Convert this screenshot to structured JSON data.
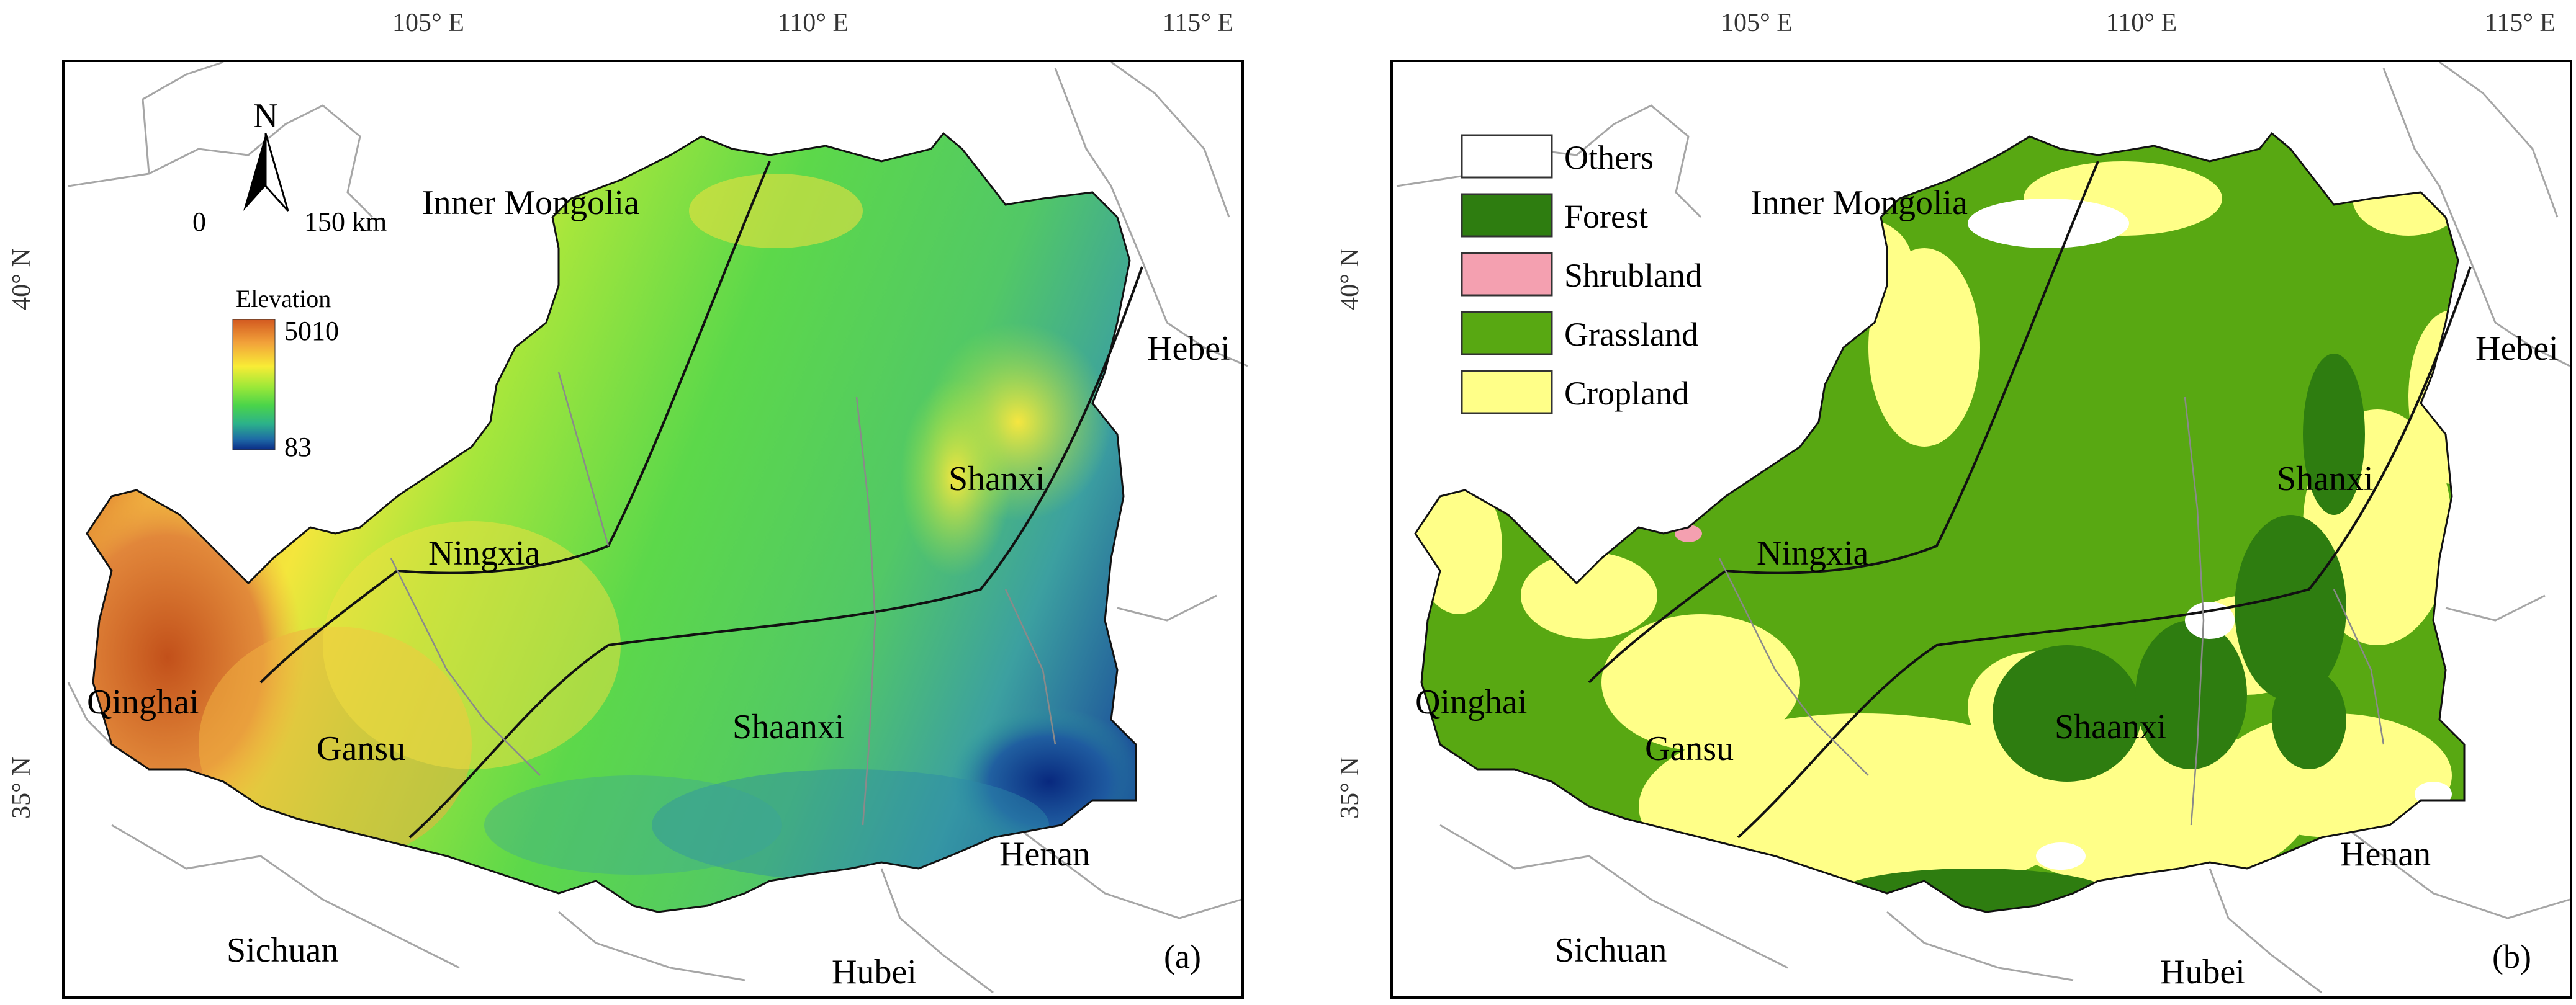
{
  "axes": {
    "longitudes": [
      "105° E",
      "110° E",
      "115° E"
    ],
    "latitudes": [
      "40° N",
      "35° N"
    ]
  },
  "panel_a": {
    "tag": "(a)",
    "north_letter": "N",
    "scale_zero": "0",
    "scale_km": "150 km",
    "legend_title": "Elevation",
    "legend_max": "5010",
    "legend_min": "83",
    "elevation_colors": [
      "#d35a20",
      "#f2a23a",
      "#f8ec36",
      "#9be838",
      "#4ad44a",
      "#2cb28a",
      "#1e6aa6",
      "#0a2a86"
    ],
    "labels": {
      "inner_mongolia": "Inner Mongolia",
      "ningxia": "Ningxia",
      "shanxi": "Shanxi",
      "hebei": "Hebei",
      "qinghai": "Qinghai",
      "gansu": "Gansu",
      "shaanxi": "Shaanxi",
      "henan": "Henan",
      "sichuan": "Sichuan",
      "hubei": "Hubei"
    }
  },
  "panel_b": {
    "tag": "(b)",
    "legend": [
      {
        "label": "Others",
        "color": "#ffffff"
      },
      {
        "label": "Forest",
        "color": "#2e7d10"
      },
      {
        "label": "Shrubland",
        "color": "#f4a0b0"
      },
      {
        "label": "Grassland",
        "color": "#58a812"
      },
      {
        "label": "Cropland",
        "color": "#ffff88"
      }
    ],
    "labels": {
      "inner_mongolia": "Inner Mongolia",
      "ningxia": "Ningxia",
      "shanxi": "Shanxi",
      "hebei": "Hebei",
      "qinghai": "Qinghai",
      "gansu": "Gansu",
      "shaanxi": "Shaanxi",
      "henan": "Henan",
      "sichuan": "Sichuan",
      "hubei": "Hubei"
    }
  }
}
